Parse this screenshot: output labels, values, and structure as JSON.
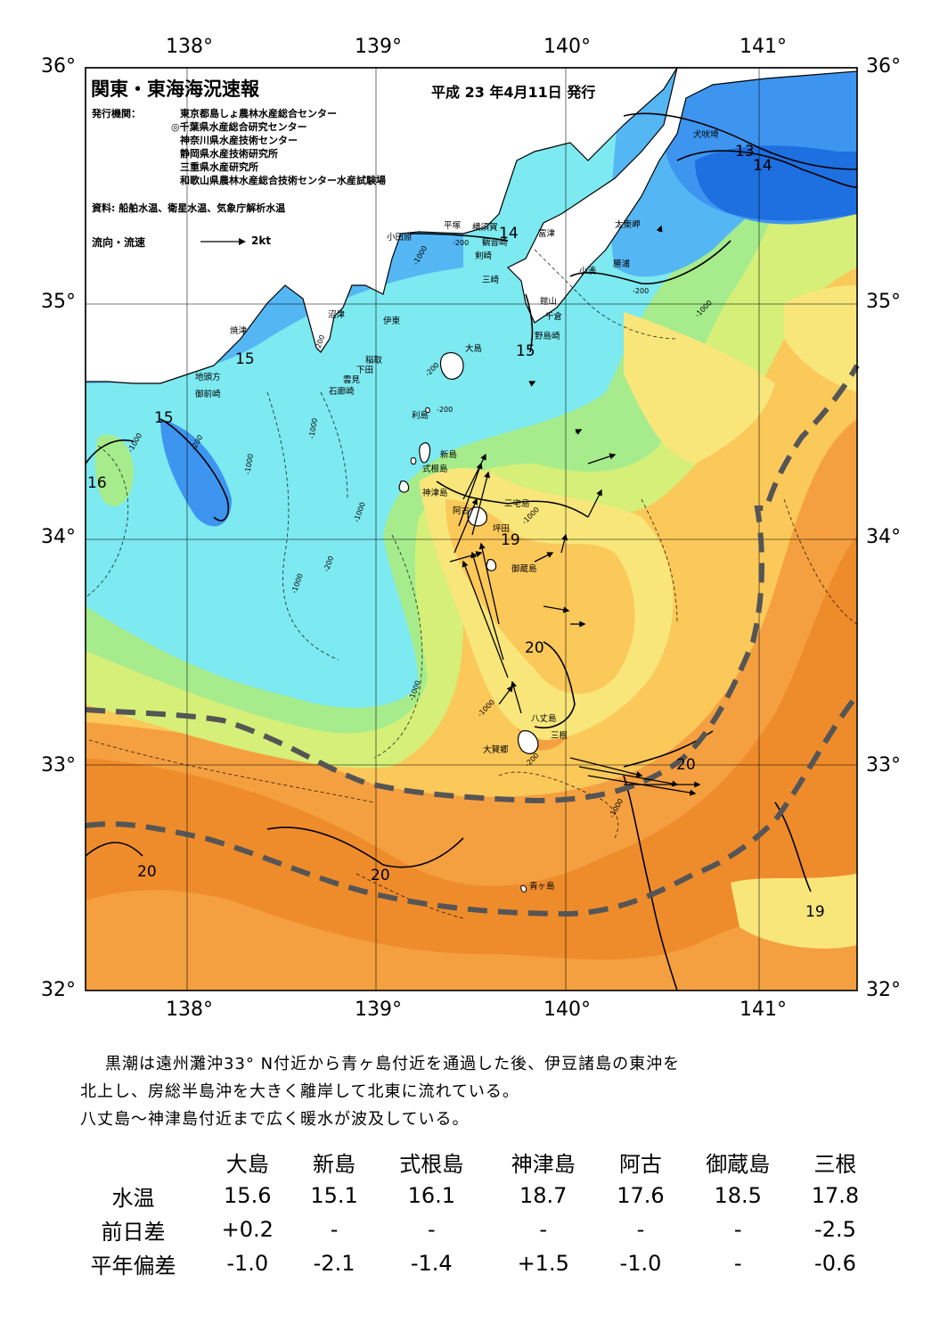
{
  "map": {
    "title": "関東・東海海況速報",
    "issue_date": "平成 23 年4月11日 発行",
    "issuer_label": "発行機関：",
    "issuers": [
      "東京都島しょ農林水産総合センター",
      "◎千葉県水産総合研究センター",
      "神奈川県水産技術センター",
      "静岡県水産技術研究所",
      "三重県水産研究所",
      "和歌山県農林水産総合技術センター水産試験場"
    ],
    "sources": "資料: 船舶水温、衛星水温、気象庁解析水温",
    "current_legend": "流向・流速",
    "current_scale": "2kt",
    "lon_labels": [
      "138°",
      "139°",
      "140°",
      "141°"
    ],
    "lat_labels": [
      "36°",
      "35°",
      "34°",
      "33°",
      "32°"
    ],
    "places": {
      "inubosaki": "犬吠埼",
      "taitomisaki": "太東岬",
      "katsuura": "勝浦",
      "kominato": "小湊",
      "tomitsu": "富津",
      "kannonzaki": "観音崎",
      "yokosuka": "横須賀",
      "hiratsuka": "平塚",
      "odawara": "小田原",
      "tsurugisaki": "剣崎",
      "miura": "三崎",
      "tateyama": "館山",
      "chikura": "千倉",
      "nojimazaki": "野島崎",
      "numazu": "沼津",
      "ito": "伊東",
      "inatori": "稲取",
      "shimoda": "下田",
      "kumomi": "雲見",
      "irozaki": "石廊崎",
      "yaizu": "焼津",
      "jitogata": "地頭方",
      "omaezaki": "御前崎",
      "oshima": "大島",
      "toshima": "利島",
      "niijima": "新島",
      "shikinejima": "式根島",
      "kozushima": "神津島",
      "miyakejima": "三宅島",
      "ako": "阿古",
      "tsubota": "坪田",
      "mikurajima": "御蔵島",
      "hachijojima": "八丈島",
      "mitsune": "三根",
      "okago": "大賀郷",
      "aogashima": "青ヶ島"
    },
    "contour_labels": {
      "t13": "13",
      "t14a": "14",
      "t14b": "14",
      "t15a": "15",
      "t15b": "15",
      "t15c": "15",
      "t16": "16",
      "t19a": "19",
      "t19b": "19",
      "t20a": "20",
      "t20b": "20",
      "t20c": "20",
      "t20d": "20"
    },
    "depth_labels": {
      "d1": "-200",
      "d2": "-1000",
      "d3": "-200",
      "d4": "-1000",
      "d5": "-200",
      "d6": "-1000",
      "d7": "-1000",
      "d8": "-1000",
      "d9": "-200",
      "d10": "-1000",
      "d11": "-1000",
      "d12": "-200",
      "d13": "-200",
      "d14": "-1000",
      "d15": "-200",
      "d16": "-1000",
      "d17": "-1000",
      "d18": "-200",
      "d19": "-1000"
    },
    "colors": {
      "c12": "#1e6fe0",
      "c13": "#3d95f0",
      "c14": "#55b6f4",
      "c15": "#7de9f0",
      "c16": "#a6ec8c",
      "c17": "#d6ef78",
      "c18": "#f8e67a",
      "c19": "#fbc85a",
      "c20": "#f5a040",
      "c21": "#ee8c2c",
      "land": "#ffffff",
      "kuroshio": "#555555"
    }
  },
  "summary": {
    "line1": "黒潮は遠州灘沖33° N付近から青ヶ島付近を通過した後、伊豆諸島の東沖を",
    "line2": "北上し、房総半島沖を大きく離岸して北東に流れている。",
    "line3": "八丈島～神津島付近まで広く暖水が波及している。"
  },
  "table": {
    "stations": [
      "大島",
      "新島",
      "式根島",
      "神津島",
      "阿古",
      "御蔵島",
      "三根"
    ],
    "rows": [
      {
        "label": "水温",
        "values": [
          "15.6",
          "15.1",
          "16.1",
          "18.7",
          "17.6",
          "18.5",
          "17.8"
        ]
      },
      {
        "label": "前日差",
        "values": [
          "+0.2",
          "-",
          "-",
          "-",
          "-",
          "-",
          "-2.5"
        ]
      },
      {
        "label": "平年偏差",
        "values": [
          "-1.0",
          "-2.1",
          "-1.4",
          "+1.5",
          "-1.0",
          "-",
          "-0.6"
        ]
      }
    ]
  }
}
